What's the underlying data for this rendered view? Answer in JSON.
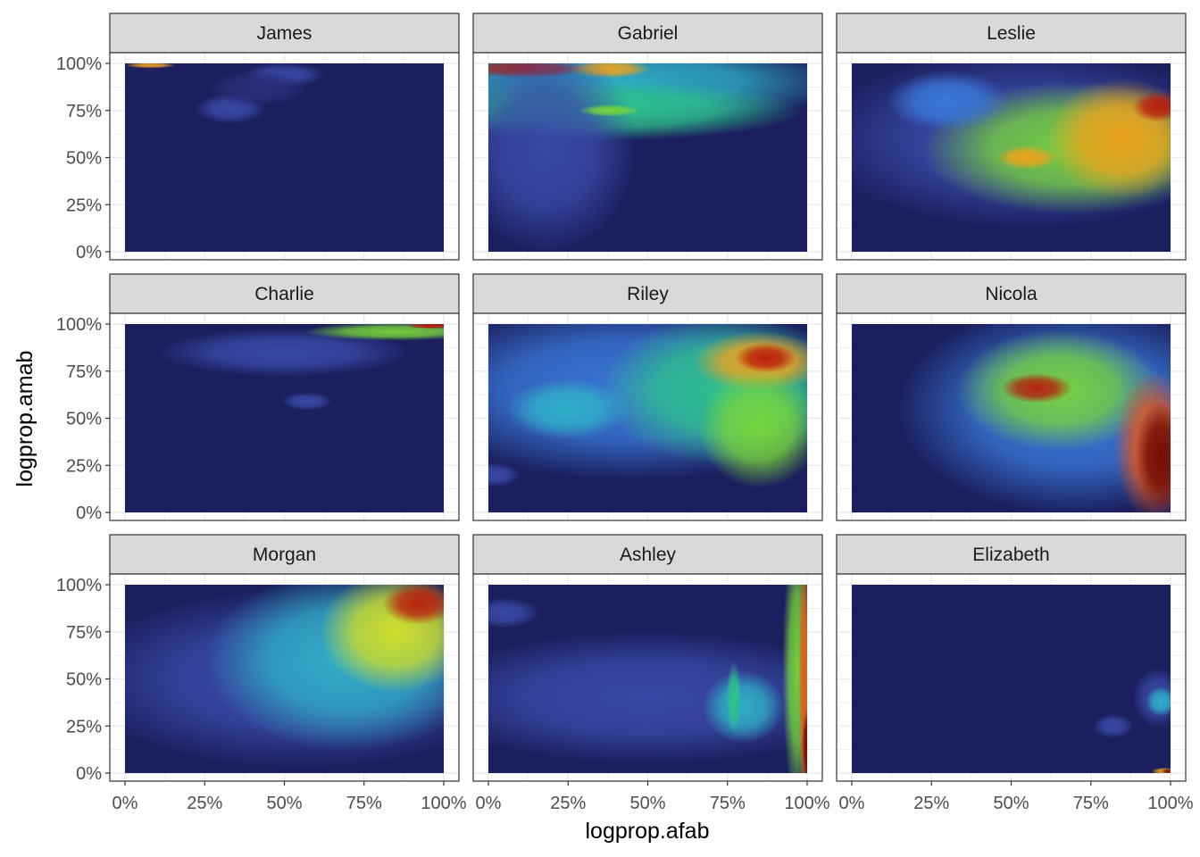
{
  "chart_data": {
    "type": "heatmap",
    "subtype": "faceted 2D density contour",
    "xlabel": "logprop.afab",
    "ylabel": "logprop.amab",
    "xlim": [
      0,
      1
    ],
    "ylim": [
      0,
      1
    ],
    "x_ticks": [
      "0%",
      "25%",
      "50%",
      "75%",
      "100%"
    ],
    "y_ticks": [
      "0%",
      "25%",
      "50%",
      "75%",
      "100%"
    ],
    "grid": true,
    "theme": "bw",
    "background_color": "#1b1f5e",
    "palette": [
      "#2b2f7a",
      "#3a4aa8",
      "#3b7bdc",
      "#2fb3c8",
      "#2ec48a",
      "#7ad63a",
      "#d8e022",
      "#f2a21c",
      "#e8561a",
      "#b81a0c",
      "#6a0a04"
    ],
    "facets": [
      {
        "name": "James",
        "blobs": [
          {
            "x": 0.5,
            "y": 0.94,
            "sx": 0.08,
            "sy": 0.04,
            "level": 1
          },
          {
            "x": 0.33,
            "y": 0.76,
            "sx": 0.07,
            "sy": 0.05,
            "level": 1
          },
          {
            "x": 0.42,
            "y": 0.87,
            "sx": 0.1,
            "sy": 0.06,
            "level": 0
          },
          {
            "x": 0.08,
            "y": 0.99,
            "sx": 0.05,
            "sy": 0.01,
            "level": 7
          }
        ]
      },
      {
        "name": "Gabriel",
        "blobs": [
          {
            "x": 0.4,
            "y": 0.9,
            "sx": 0.45,
            "sy": 0.14,
            "level": 3
          },
          {
            "x": 0.35,
            "y": 0.75,
            "sx": 0.4,
            "sy": 0.1,
            "level": 4
          },
          {
            "x": 0.12,
            "y": 0.97,
            "sx": 0.12,
            "sy": 0.03,
            "level": 9
          },
          {
            "x": 0.38,
            "y": 0.97,
            "sx": 0.08,
            "sy": 0.03,
            "level": 7
          },
          {
            "x": 0.18,
            "y": 0.55,
            "sx": 0.18,
            "sy": 0.35,
            "level": 1
          },
          {
            "x": 0.38,
            "y": 0.75,
            "sx": 0.06,
            "sy": 0.02,
            "level": 5
          }
        ]
      },
      {
        "name": "Leslie",
        "blobs": [
          {
            "x": 0.55,
            "y": 0.6,
            "sx": 0.42,
            "sy": 0.3,
            "level": 1
          },
          {
            "x": 0.7,
            "y": 0.55,
            "sx": 0.3,
            "sy": 0.22,
            "level": 5
          },
          {
            "x": 0.85,
            "y": 0.6,
            "sx": 0.15,
            "sy": 0.2,
            "level": 7
          },
          {
            "x": 0.96,
            "y": 0.77,
            "sx": 0.05,
            "sy": 0.05,
            "level": 9
          },
          {
            "x": 0.55,
            "y": 0.5,
            "sx": 0.06,
            "sy": 0.04,
            "level": 7
          },
          {
            "x": 0.3,
            "y": 0.8,
            "sx": 0.12,
            "sy": 0.1,
            "level": 2
          }
        ]
      },
      {
        "name": "Charlie",
        "blobs": [
          {
            "x": 0.5,
            "y": 0.85,
            "sx": 0.25,
            "sy": 0.08,
            "level": 1
          },
          {
            "x": 0.85,
            "y": 0.96,
            "sx": 0.18,
            "sy": 0.03,
            "level": 5
          },
          {
            "x": 0.96,
            "y": 0.99,
            "sx": 0.05,
            "sy": 0.01,
            "level": 9
          },
          {
            "x": 0.57,
            "y": 0.59,
            "sx": 0.05,
            "sy": 0.03,
            "level": 1
          }
        ]
      },
      {
        "name": "Riley",
        "blobs": [
          {
            "x": 0.45,
            "y": 0.65,
            "sx": 0.45,
            "sy": 0.3,
            "level": 2
          },
          {
            "x": 0.75,
            "y": 0.65,
            "sx": 0.25,
            "sy": 0.25,
            "level": 4
          },
          {
            "x": 0.85,
            "y": 0.8,
            "sx": 0.13,
            "sy": 0.1,
            "level": 7
          },
          {
            "x": 0.87,
            "y": 0.82,
            "sx": 0.06,
            "sy": 0.05,
            "level": 9
          },
          {
            "x": 0.25,
            "y": 0.55,
            "sx": 0.12,
            "sy": 0.1,
            "level": 3
          },
          {
            "x": 0.85,
            "y": 0.45,
            "sx": 0.12,
            "sy": 0.2,
            "level": 5
          },
          {
            "x": 0.02,
            "y": 0.2,
            "sx": 0.05,
            "sy": 0.04,
            "level": 1
          }
        ]
      },
      {
        "name": "Nicola",
        "blobs": [
          {
            "x": 0.7,
            "y": 0.55,
            "sx": 0.35,
            "sy": 0.35,
            "level": 2
          },
          {
            "x": 0.65,
            "y": 0.65,
            "sx": 0.2,
            "sy": 0.2,
            "level": 5
          },
          {
            "x": 0.58,
            "y": 0.66,
            "sx": 0.07,
            "sy": 0.05,
            "level": 9
          },
          {
            "x": 0.95,
            "y": 0.35,
            "sx": 0.08,
            "sy": 0.25,
            "level": 8
          },
          {
            "x": 0.97,
            "y": 0.3,
            "sx": 0.05,
            "sy": 0.18,
            "level": 10
          }
        ]
      },
      {
        "name": "Morgan",
        "blobs": [
          {
            "x": 0.55,
            "y": 0.5,
            "sx": 0.45,
            "sy": 0.3,
            "level": 1
          },
          {
            "x": 0.7,
            "y": 0.6,
            "sx": 0.28,
            "sy": 0.3,
            "level": 3
          },
          {
            "x": 0.85,
            "y": 0.75,
            "sx": 0.15,
            "sy": 0.2,
            "level": 6
          },
          {
            "x": 0.92,
            "y": 0.9,
            "sx": 0.07,
            "sy": 0.07,
            "level": 9
          }
        ]
      },
      {
        "name": "Ashley",
        "blobs": [
          {
            "x": 0.5,
            "y": 0.4,
            "sx": 0.45,
            "sy": 0.22,
            "level": 1
          },
          {
            "x": 0.8,
            "y": 0.35,
            "sx": 0.08,
            "sy": 0.12,
            "level": 3
          },
          {
            "x": 0.77,
            "y": 0.4,
            "sx": 0.015,
            "sy": 0.12,
            "level": 4
          },
          {
            "x": 0.97,
            "y": 0.55,
            "sx": 0.03,
            "sy": 0.45,
            "level": 5
          },
          {
            "x": 0.99,
            "y": 0.5,
            "sx": 0.01,
            "sy": 0.45,
            "level": 8
          },
          {
            "x": 1.0,
            "y": 0.15,
            "sx": 0.01,
            "sy": 0.12,
            "level": 10
          },
          {
            "x": 0.05,
            "y": 0.85,
            "sx": 0.07,
            "sy": 0.05,
            "level": 1
          }
        ]
      },
      {
        "name": "Elizabeth",
        "blobs": [
          {
            "x": 0.96,
            "y": 0.4,
            "sx": 0.05,
            "sy": 0.1,
            "level": 1
          },
          {
            "x": 0.97,
            "y": 0.38,
            "sx": 0.03,
            "sy": 0.05,
            "level": 3
          },
          {
            "x": 0.82,
            "y": 0.25,
            "sx": 0.04,
            "sy": 0.04,
            "level": 1
          },
          {
            "x": 0.98,
            "y": 0.01,
            "sx": 0.025,
            "sy": 0.012,
            "level": 7
          },
          {
            "x": 0.99,
            "y": 0.01,
            "sx": 0.01,
            "sy": 0.008,
            "level": 10
          }
        ]
      }
    ]
  }
}
